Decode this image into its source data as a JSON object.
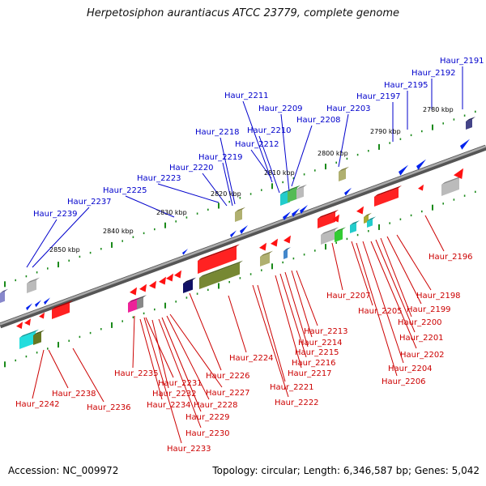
{
  "title": "Herpetosiphon aurantiacus ATCC 23779, complete genome",
  "footer": {
    "accession": "Accession: NC_009972",
    "summary": "Topology: circular; Length: 6,346,587 bp; Genes: 5,042"
  },
  "colors": {
    "top_strand_label": "#0000cc",
    "bottom_strand_label": "#cc0000",
    "backbone": "#888888",
    "tick": "#1a8a1a"
  },
  "kbp_labels": [
    "2780 kbp",
    "2790 kbp",
    "2800 kbp",
    "2810 kbp",
    "2820 kbp",
    "2830 kbp",
    "2840 kbp",
    "2850 kbp"
  ],
  "top_genes": [
    "Haur_2191",
    "Haur_2192",
    "Haur_2195",
    "Haur_2197",
    "Haur_2203",
    "Haur_2208",
    "Haur_2209",
    "Haur_2210",
    "Haur_2211",
    "Haur_2212",
    "Haur_2218",
    "Haur_2219",
    "Haur_2220",
    "Haur_2223",
    "Haur_2225",
    "Haur_2237",
    "Haur_2239"
  ],
  "bottom_genes": [
    "Haur_2196",
    "Haur_2198",
    "Haur_2199",
    "Haur_2200",
    "Haur_2201",
    "Haur_2202",
    "Haur_2204",
    "Haur_2205",
    "Haur_2206",
    "Haur_2207",
    "Haur_2213",
    "Haur_2214",
    "Haur_2215",
    "Haur_2216",
    "Haur_2217",
    "Haur_2221",
    "Haur_2222",
    "Haur_2224",
    "Haur_2226",
    "Haur_2227",
    "Haur_2228",
    "Haur_2229",
    "Haur_2230",
    "Haur_2231",
    "Haur_2232",
    "Haur_2233",
    "Haur_2234",
    "Haur_2235",
    "Haur_2236",
    "Haur_2238",
    "Haur_2242"
  ]
}
